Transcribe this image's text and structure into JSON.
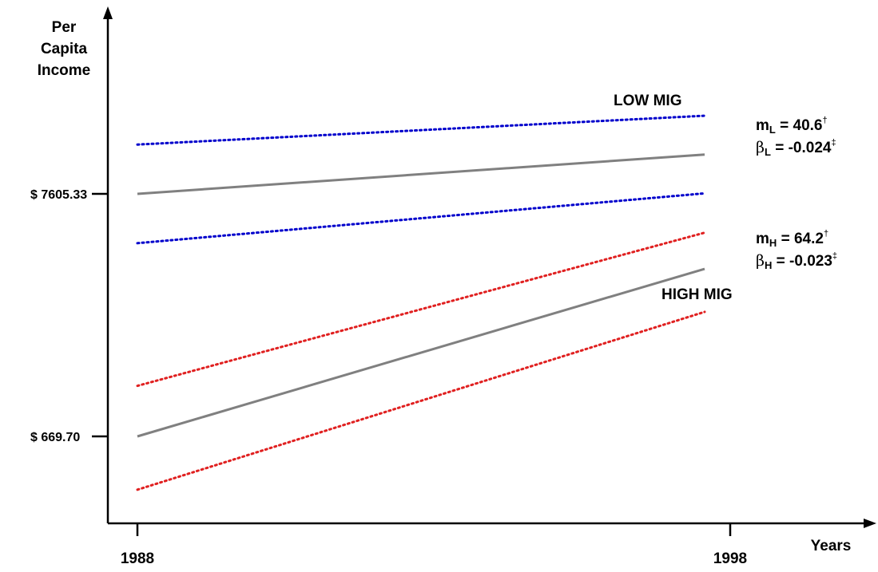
{
  "chart_data": {
    "type": "line",
    "ylabel_lines": [
      "Per",
      "Capita",
      "Income"
    ],
    "xlabel": "Years",
    "x_ticks": [
      "1988",
      "1998"
    ],
    "y_ticks": [
      "$ 7605.33",
      "$ 669.70"
    ],
    "series": [
      {
        "name": "LOW MIG",
        "x": [
          "1988",
          "1998"
        ],
        "y": [
          7605.33,
          8730
        ],
        "style": "solid",
        "color": "#808080"
      },
      {
        "x": [
          "1988",
          "1998"
        ],
        "y": [
          9015,
          9840
        ],
        "style": "dotted",
        "color": "#0000cc"
      },
      {
        "x": [
          "1988",
          "1998"
        ],
        "y": [
          6195,
          7620
        ],
        "style": "dotted",
        "color": "#0000cc"
      },
      {
        "name": "HIGH MIG",
        "x": [
          "1988",
          "1998"
        ],
        "y": [
          669.7,
          5460
        ],
        "style": "solid",
        "color": "#808080"
      },
      {
        "x": [
          "1988",
          "1998"
        ],
        "y": [
          2115,
          6495
        ],
        "style": "dotted",
        "color": "#e02020"
      },
      {
        "x": [
          "1988",
          "1998"
        ],
        "y": [
          -855,
          4230
        ],
        "style": "dotted",
        "color": "#e02020"
      }
    ],
    "low_mig_stats": {
      "label": "LOW MIG",
      "m_symbol": "m",
      "m_sub": "L",
      "m_eq": " = 40.6",
      "m_sup": "†",
      "b_symbol": "β",
      "b_sub": "L",
      "b_eq": " = -0.024",
      "b_sup": "‡"
    },
    "high_mig_stats": {
      "label": "HIGH MIG",
      "m_symbol": "m",
      "m_sub": "H",
      "m_eq": " = 64.2",
      "m_sup": "†",
      "b_symbol": "β",
      "b_sub": "H",
      "b_eq": " = -0.023",
      "b_sup": "‡"
    }
  }
}
